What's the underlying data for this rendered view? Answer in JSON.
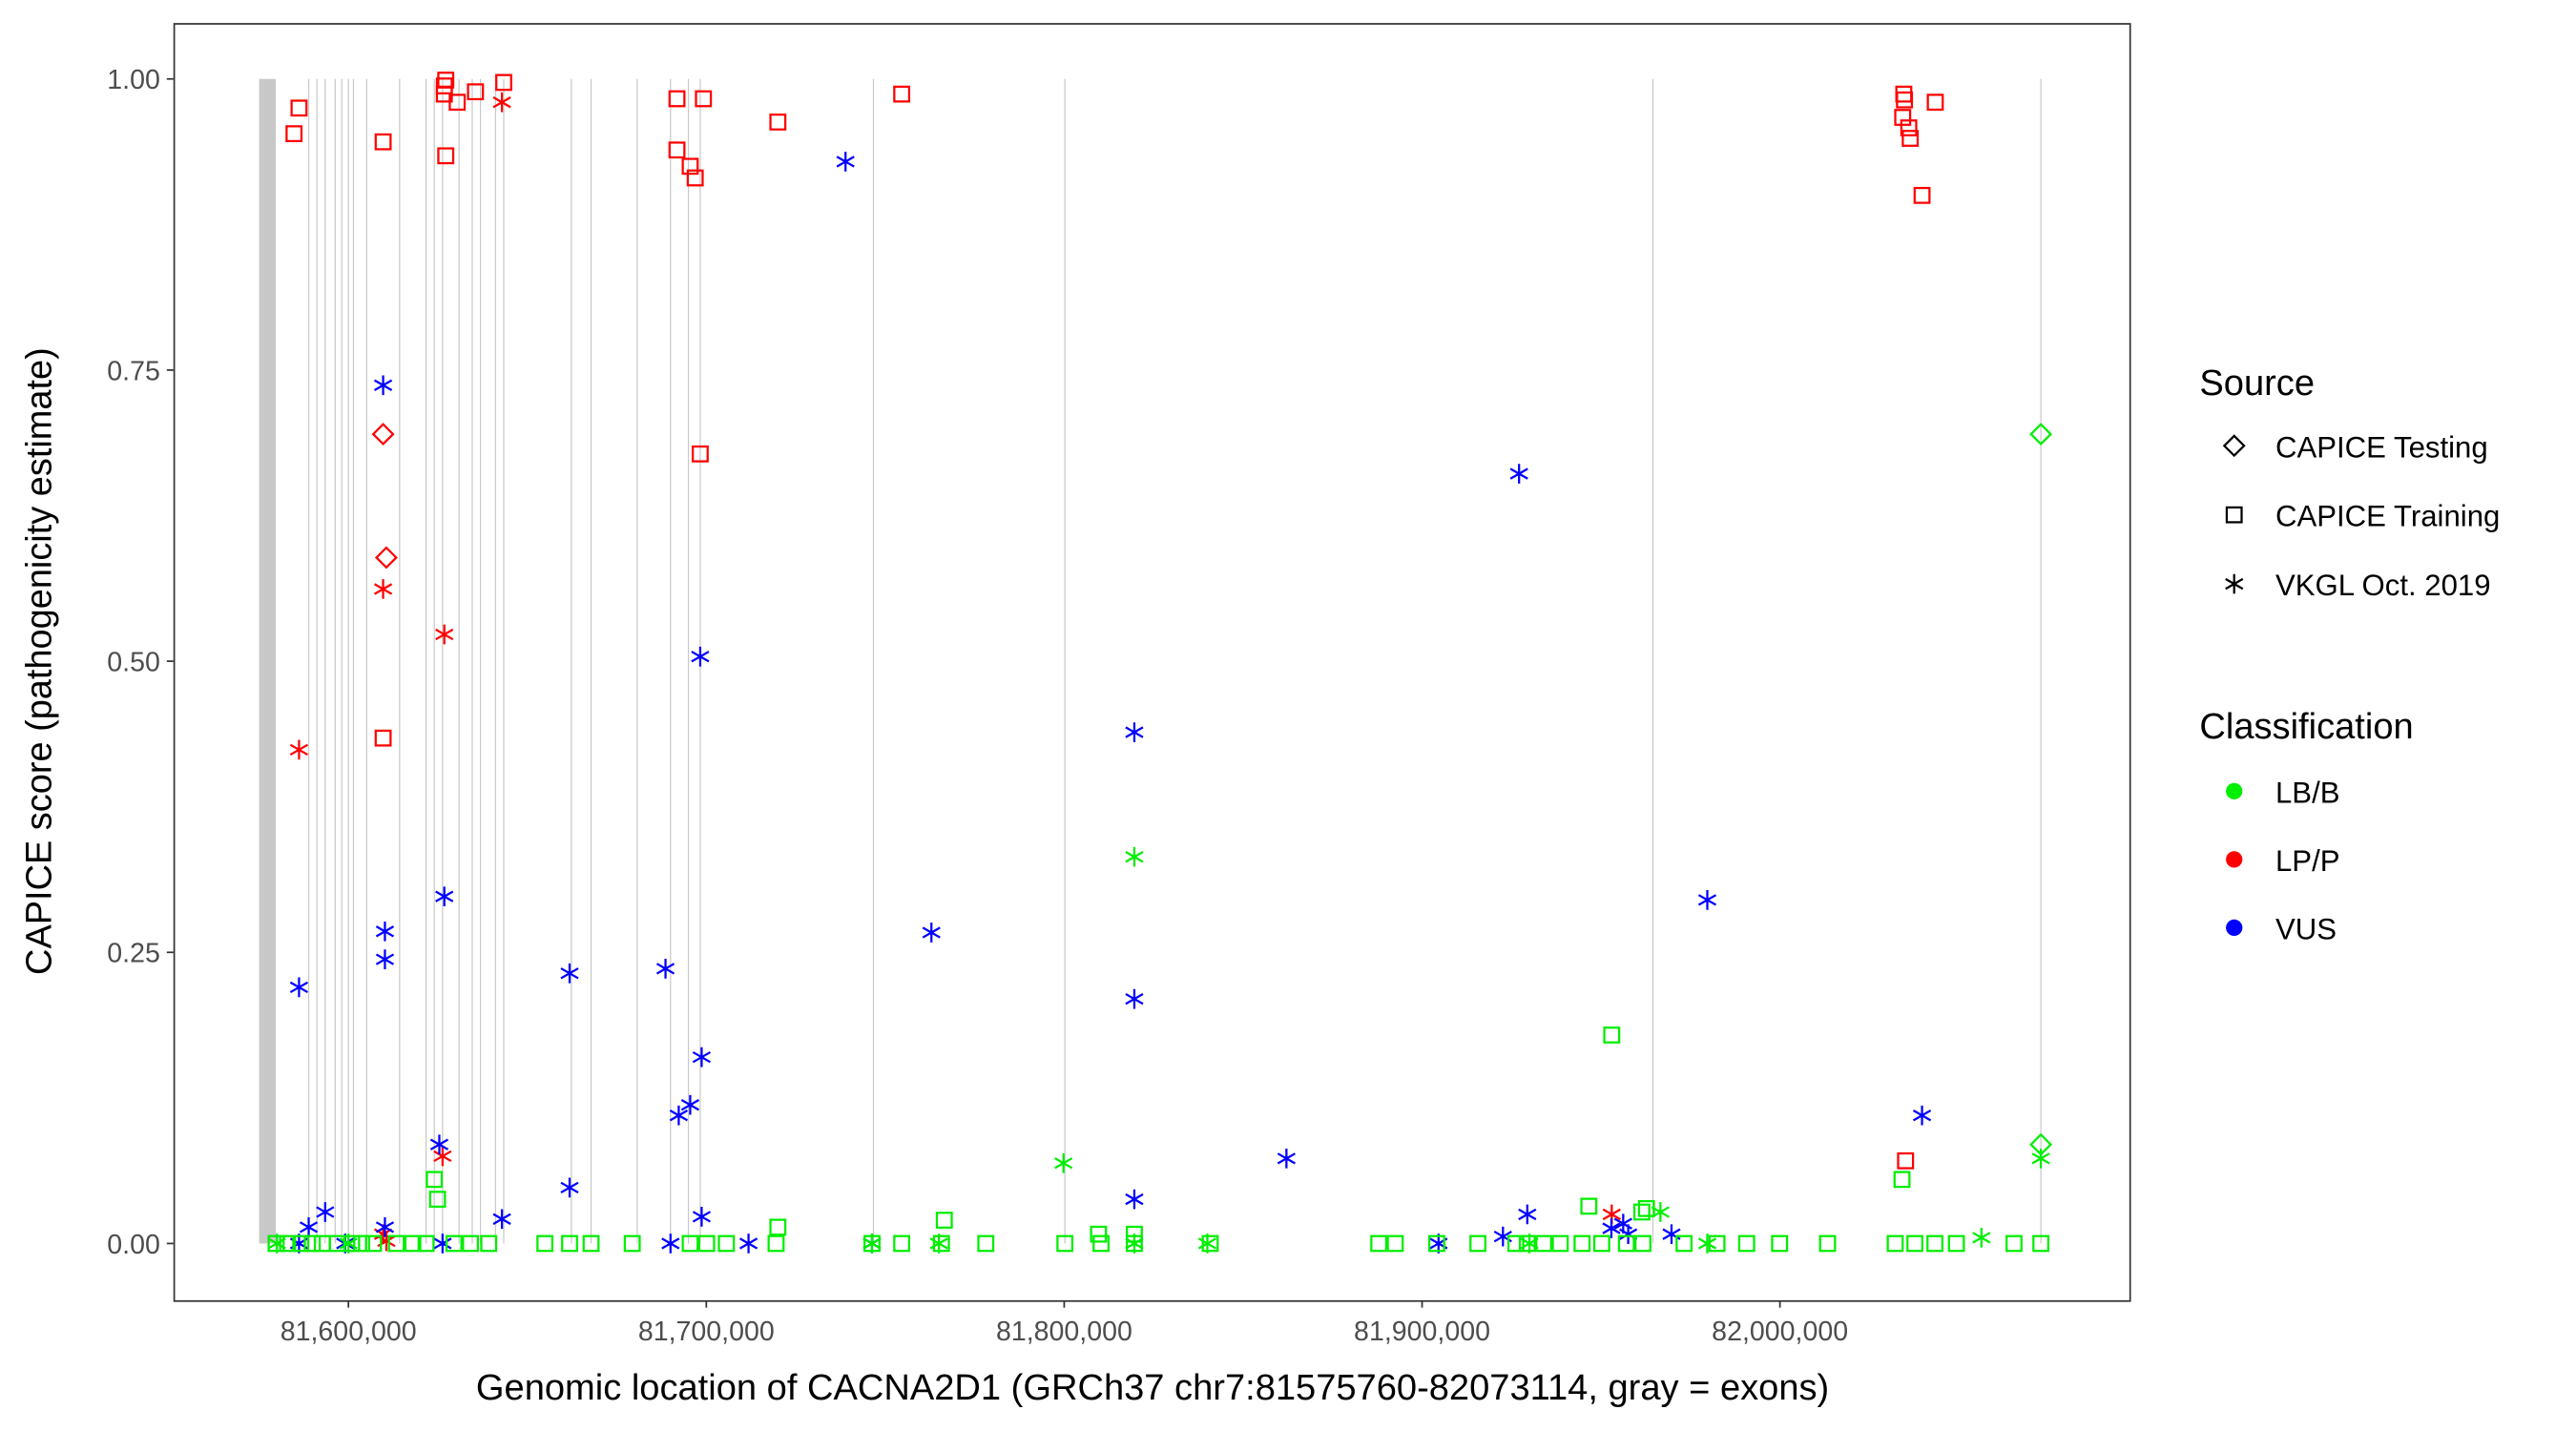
{
  "chart_data": {
    "type": "scatter",
    "xlabel": "Genomic location of CACNA2D1 (GRCh37 chr7:81575760-82073114, gray = exons)",
    "ylabel": "CAPICE score (pathogenicity estimate)",
    "xlim": [
      81558000,
      82085000
    ],
    "ylim": [
      -0.046,
      1.05
    ],
    "xticks": [
      81600000,
      81700000,
      81800000,
      81900000,
      82000000
    ],
    "xtick_labels": [
      "81,600,000",
      "81,700,000",
      "81,800,000",
      "81,900,000",
      "82,000,000"
    ],
    "yticks": [
      0,
      0.25,
      0.5,
      0.75,
      1.0
    ],
    "ytick_labels": [
      "0.00",
      "0.25",
      "0.50",
      "0.75",
      "1.00"
    ],
    "grid": false,
    "exons": [
      81575550,
      81576500,
      81577400,
      81578300,
      81579200,
      81588900,
      81591200,
      81593500,
      81596300,
      81598150,
      81600000,
      81601400,
      81605100,
      81614300,
      81621700,
      81624000,
      81626300,
      81630900,
      81634600,
      81636900,
      81641100,
      81643400,
      81662300,
      81667800,
      81680700,
      81690000,
      81695000,
      81698300,
      81746700,
      81800200,
      81964500,
      82072900
    ],
    "legend": {
      "position": "right",
      "source_title": "Source",
      "sources": [
        {
          "name": "CAPICE Testing",
          "shape": "diamond"
        },
        {
          "name": "CAPICE Training",
          "shape": "square"
        },
        {
          "name": "VKGL Oct. 2019",
          "shape": "star"
        }
      ],
      "class_title": "Classification",
      "classes": [
        {
          "name": "LB/B",
          "color": "#00EE00"
        },
        {
          "name": "LP/P",
          "color": "#FF0000"
        },
        {
          "name": "VUS",
          "color": "#0000FF"
        }
      ]
    },
    "series": [
      {
        "source": "CAPICE Training",
        "classification": "LP/P",
        "points": [
          [
            81584800,
            0.953
          ],
          [
            81586200,
            0.975
          ],
          [
            81609700,
            0.946
          ],
          [
            81626800,
            0.994
          ],
          [
            81626800,
            0.987
          ],
          [
            81627200,
            0.999
          ],
          [
            81627200,
            0.934
          ],
          [
            81630400,
            0.98
          ],
          [
            81635500,
            0.989
          ],
          [
            81643400,
            0.997
          ],
          [
            81691800,
            0.983
          ],
          [
            81699200,
            0.983
          ],
          [
            81691800,
            0.939
          ],
          [
            81695500,
            0.925
          ],
          [
            81696900,
            0.915
          ],
          [
            81720000,
            0.963
          ],
          [
            81754600,
            0.987
          ],
          [
            81698300,
            0.678
          ],
          [
            81609700,
            0.434
          ],
          [
            82034600,
            0.987
          ],
          [
            82034800,
            0.982
          ],
          [
            82034300,
            0.967
          ],
          [
            82036000,
            0.958
          ],
          [
            82036400,
            0.949
          ],
          [
            82039700,
            0.9
          ],
          [
            82043400,
            0.98
          ],
          [
            82035100,
            0.071
          ]
        ]
      },
      {
        "source": "CAPICE Testing",
        "classification": "LP/P",
        "points": [
          [
            81609700,
            0.695
          ],
          [
            81610600,
            0.589
          ]
        ]
      },
      {
        "source": "VKGL Oct. 2019",
        "classification": "LP/P",
        "points": [
          [
            81642900,
            0.98
          ],
          [
            81609700,
            0.562
          ],
          [
            81626800,
            0.523
          ],
          [
            81586200,
            0.424
          ],
          [
            81626300,
            0.075
          ],
          [
            81609700,
            0.008
          ],
          [
            81953000,
            0.025
          ],
          [
            81610600,
            0.002
          ]
        ]
      },
      {
        "source": "VKGL Oct. 2019",
        "classification": "VUS",
        "points": [
          [
            81738900,
            0.929
          ],
          [
            81609700,
            0.737
          ],
          [
            81927100,
            0.661
          ],
          [
            81698300,
            0.504
          ],
          [
            81819600,
            0.439
          ],
          [
            81979700,
            0.295
          ],
          [
            81626800,
            0.298
          ],
          [
            81762900,
            0.267
          ],
          [
            81610200,
            0.268
          ],
          [
            81610200,
            0.244
          ],
          [
            81661800,
            0.232
          ],
          [
            81688600,
            0.236
          ],
          [
            81586200,
            0.22
          ],
          [
            81819600,
            0.21
          ],
          [
            81698700,
            0.16
          ],
          [
            81695500,
            0.119
          ],
          [
            81692300,
            0.11
          ],
          [
            82039700,
            0.11
          ],
          [
            81625400,
            0.085
          ],
          [
            81661800,
            0.048
          ],
          [
            81862100,
            0.073
          ],
          [
            81819600,
            0.038
          ],
          [
            81593500,
            0.027
          ],
          [
            81588900,
            0.014
          ],
          [
            81610200,
            0.014
          ],
          [
            81642900,
            0.021
          ],
          [
            81698700,
            0.023
          ],
          [
            81929400,
            0.025
          ],
          [
            81586200,
            0
          ],
          [
            81599100,
            0
          ],
          [
            81626300,
            0
          ],
          [
            81690000,
            0
          ],
          [
            81711800,
            0
          ],
          [
            81746300,
            0
          ],
          [
            81904600,
            0
          ],
          [
            81922600,
            0.006
          ],
          [
            81957600,
            0.008
          ],
          [
            81952900,
            0.013
          ],
          [
            81969700,
            0.008
          ],
          [
            81956200,
            0.017
          ]
        ]
      },
      {
        "source": "VKGL Oct. 2019",
        "classification": "LB/B",
        "points": [
          [
            81819600,
            0.332
          ],
          [
            81799800,
            0.069
          ],
          [
            82072900,
            0.073
          ],
          [
            81966600,
            0.027
          ],
          [
            82056300,
            0.005
          ],
          [
            81580000,
            0
          ],
          [
            81600000,
            0
          ],
          [
            81746300,
            0
          ],
          [
            81765000,
            0
          ],
          [
            81819600,
            0
          ],
          [
            81840000,
            0
          ],
          [
            81930000,
            0
          ],
          [
            81979700,
            0
          ]
        ]
      },
      {
        "source": "CAPICE Testing",
        "classification": "LB/B",
        "points": [
          [
            82072900,
            0.695
          ],
          [
            82072900,
            0.085
          ]
        ]
      },
      {
        "source": "CAPICE Training",
        "classification": "LB/B",
        "points": [
          [
            81953000,
            0.179
          ],
          [
            81624000,
            0.055
          ],
          [
            81624900,
            0.038
          ],
          [
            82034100,
            0.055
          ],
          [
            81946600,
            0.032
          ],
          [
            81961400,
            0.027
          ],
          [
            81962700,
            0.03
          ],
          [
            81766500,
            0.02
          ],
          [
            81720000,
            0.014
          ],
          [
            81819600,
            0.008
          ],
          [
            81809600,
            0.008
          ],
          [
            81579800,
            0
          ],
          [
            81583000,
            0
          ],
          [
            81586700,
            0
          ],
          [
            81589900,
            0
          ],
          [
            81592700,
            0
          ],
          [
            81596900,
            0
          ],
          [
            81600900,
            0
          ],
          [
            81603700,
            0
          ],
          [
            81607000,
            0
          ],
          [
            81613400,
            0
          ],
          [
            81618000,
            0
          ],
          [
            81621700,
            0
          ],
          [
            81629500,
            0
          ],
          [
            81634100,
            0
          ],
          [
            81639200,
            0
          ],
          [
            81654900,
            0
          ],
          [
            81661800,
            0
          ],
          [
            81667800,
            0
          ],
          [
            81679300,
            0
          ],
          [
            81695500,
            0
          ],
          [
            81700100,
            0
          ],
          [
            81705600,
            0
          ],
          [
            81719500,
            0
          ],
          [
            81746300,
            0
          ],
          [
            81754600,
            0
          ],
          [
            81765700,
            0
          ],
          [
            81778100,
            0
          ],
          [
            81800200,
            0
          ],
          [
            81810300,
            0
          ],
          [
            81819600,
            0
          ],
          [
            81840800,
            0
          ],
          [
            81887900,
            0
          ],
          [
            81892500,
            0
          ],
          [
            81904100,
            0
          ],
          [
            81915600,
            0
          ],
          [
            81926200,
            0
          ],
          [
            81929400,
            0
          ],
          [
            81934000,
            0
          ],
          [
            81938600,
            0
          ],
          [
            81944700,
            0
          ],
          [
            81950200,
            0
          ],
          [
            81957100,
            0
          ],
          [
            81961700,
            0
          ],
          [
            81973200,
            0
          ],
          [
            81982400,
            0
          ],
          [
            81990700,
            0
          ],
          [
            81999900,
            0
          ],
          [
            82013300,
            0
          ],
          [
            82032200,
            0
          ],
          [
            82037700,
            0
          ],
          [
            82043300,
            0
          ],
          [
            82049300,
            0
          ],
          [
            82065400,
            0
          ],
          [
            82072900,
            0
          ]
        ]
      }
    ]
  }
}
